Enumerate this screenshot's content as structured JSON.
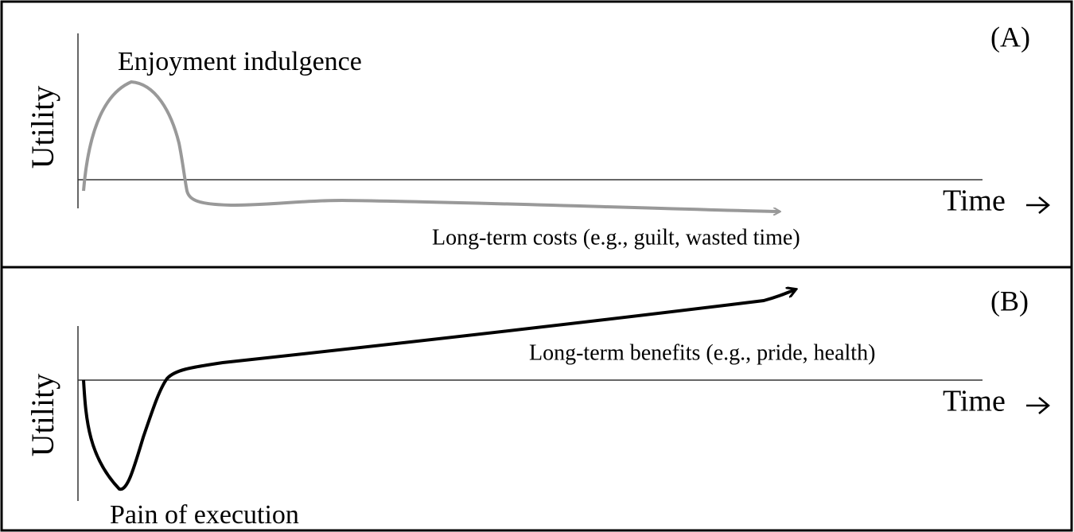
{
  "panels": [
    {
      "label": "(A)",
      "y_axis_label": "Utility",
      "x_axis_label": "Time",
      "annotations": [
        "Enjoyment indulgence",
        "Long-term costs (e.g., guilt, wasted time)"
      ]
    },
    {
      "label": "(B)",
      "y_axis_label": "Utility",
      "x_axis_label": "Time",
      "annotations": [
        "Long-term benefits (e.g., pride, health)",
        "Pain of execution"
      ]
    }
  ]
}
